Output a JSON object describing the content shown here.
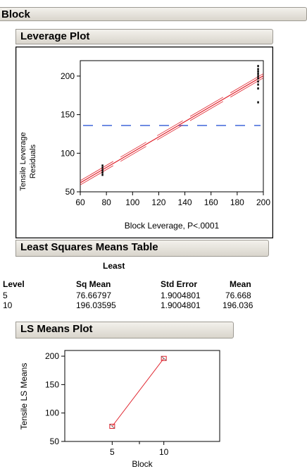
{
  "block_title": "Block",
  "leverage_plot": {
    "title": "Leverage Plot",
    "chart_data": {
      "type": "scatter",
      "title": "",
      "xlabel": "Block Leverage, P<.0001",
      "ylabel": [
        "Tensile Leverage",
        "Residuals"
      ],
      "xlim": [
        60,
        200
      ],
      "ylim": [
        50,
        220
      ],
      "xticks": [
        60,
        80,
        100,
        120,
        140,
        160,
        180,
        200
      ],
      "yticks": [
        50,
        100,
        150,
        200
      ],
      "mean_line": 136,
      "fit_line": {
        "x": [
          60,
          200
        ],
        "y": [
          61.7,
          200.4
        ]
      },
      "points": [
        {
          "x": 77,
          "y": 72
        },
        {
          "x": 77,
          "y": 75
        },
        {
          "x": 77,
          "y": 78
        },
        {
          "x": 77,
          "y": 81
        },
        {
          "x": 77,
          "y": 84
        },
        {
          "x": 196,
          "y": 166
        },
        {
          "x": 196,
          "y": 184
        },
        {
          "x": 196,
          "y": 189
        },
        {
          "x": 196,
          "y": 193
        },
        {
          "x": 196,
          "y": 197
        },
        {
          "x": 196,
          "y": 200
        },
        {
          "x": 196,
          "y": 203
        },
        {
          "x": 196,
          "y": 206
        },
        {
          "x": 196,
          "y": 209
        },
        {
          "x": 196,
          "y": 213
        }
      ],
      "line_color": "#e0202a",
      "mean_color": "#2e58d6"
    }
  },
  "lsm_table": {
    "title": "Least Squares Means Table",
    "header_top": "Least",
    "headers": [
      "Level",
      "Sq Mean",
      "Std Error",
      "Mean"
    ],
    "rows": [
      [
        "5",
        "76.66797",
        "1.9004801",
        "76.668"
      ],
      [
        "10",
        "196.03595",
        "1.9004801",
        "196.036"
      ]
    ]
  },
  "ls_means_plot": {
    "title": "LS Means Plot",
    "chart_data": {
      "type": "line",
      "title": "",
      "xlabel": "Block",
      "ylabel": "Tensile LS Means",
      "categories": [
        "5",
        "10"
      ],
      "values": [
        76.67,
        196.04
      ],
      "ylim": [
        50,
        210
      ],
      "yticks": [
        50,
        100,
        150,
        200
      ],
      "line_color": "#e0202a"
    }
  }
}
